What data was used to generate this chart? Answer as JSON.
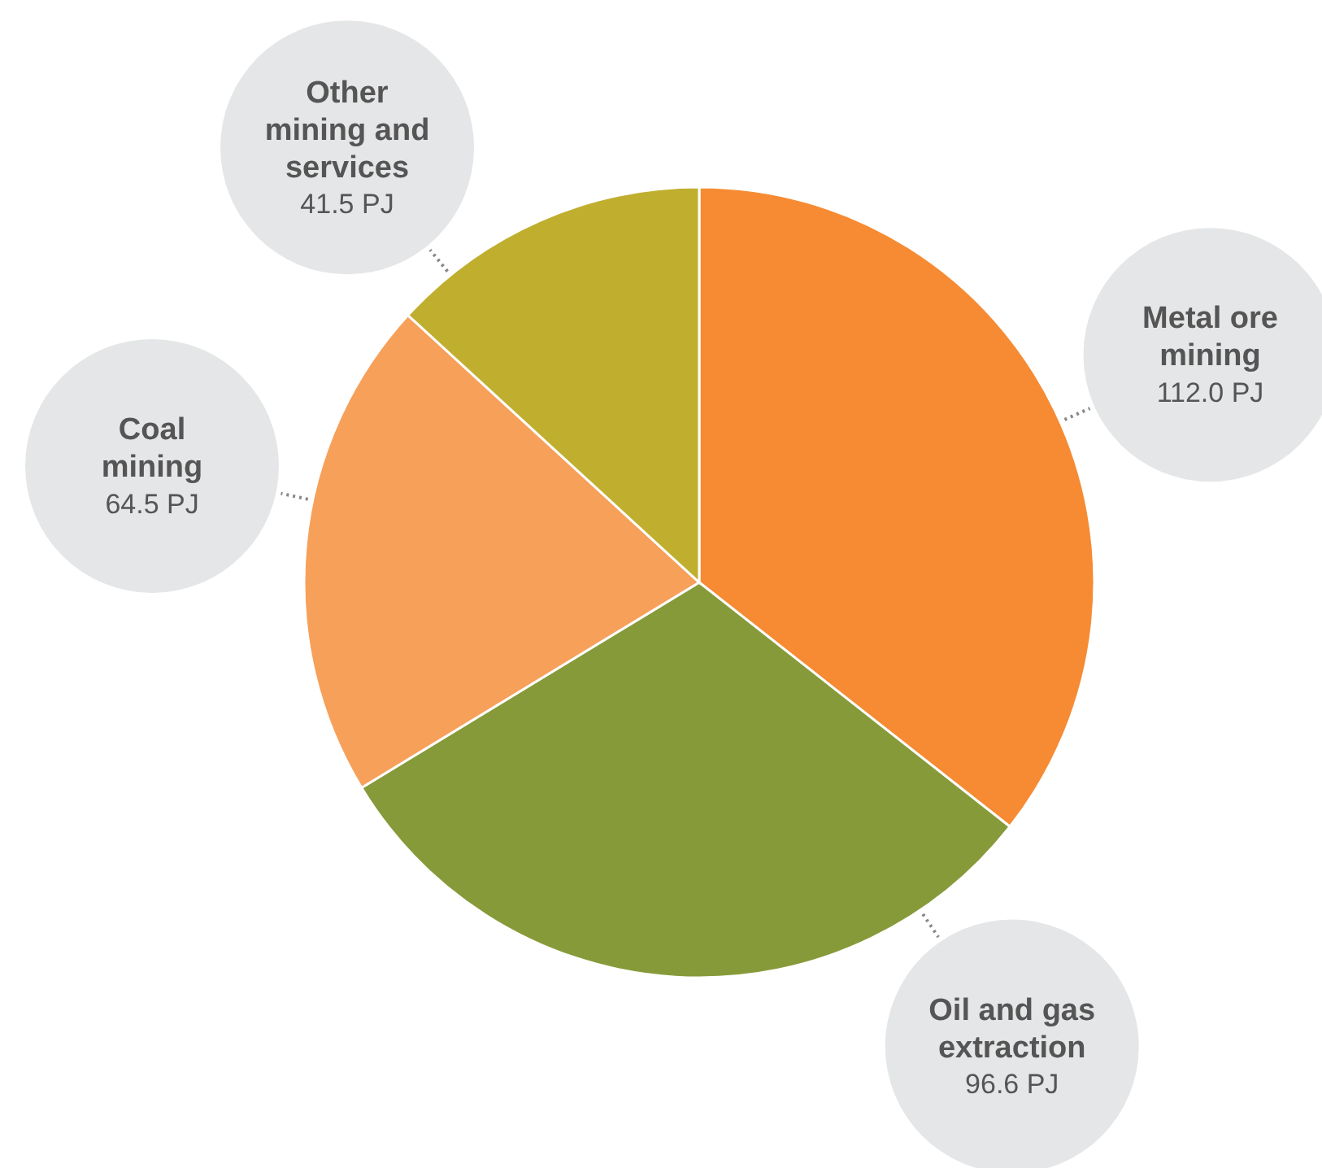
{
  "chart_data": {
    "type": "pie",
    "categories": [
      "Metal ore mining",
      "Oil and gas extraction",
      "Coal mining",
      "Other mining and services"
    ],
    "values": [
      112.0,
      96.6,
      64.5,
      41.5
    ],
    "colors": [
      "#f68b33",
      "#879a3a",
      "#f7a05a",
      "#c0af2f"
    ],
    "value_labels": [
      "112.0 PJ",
      "96.6 PJ",
      "64.5 PJ",
      "41.5 PJ"
    ]
  }
}
